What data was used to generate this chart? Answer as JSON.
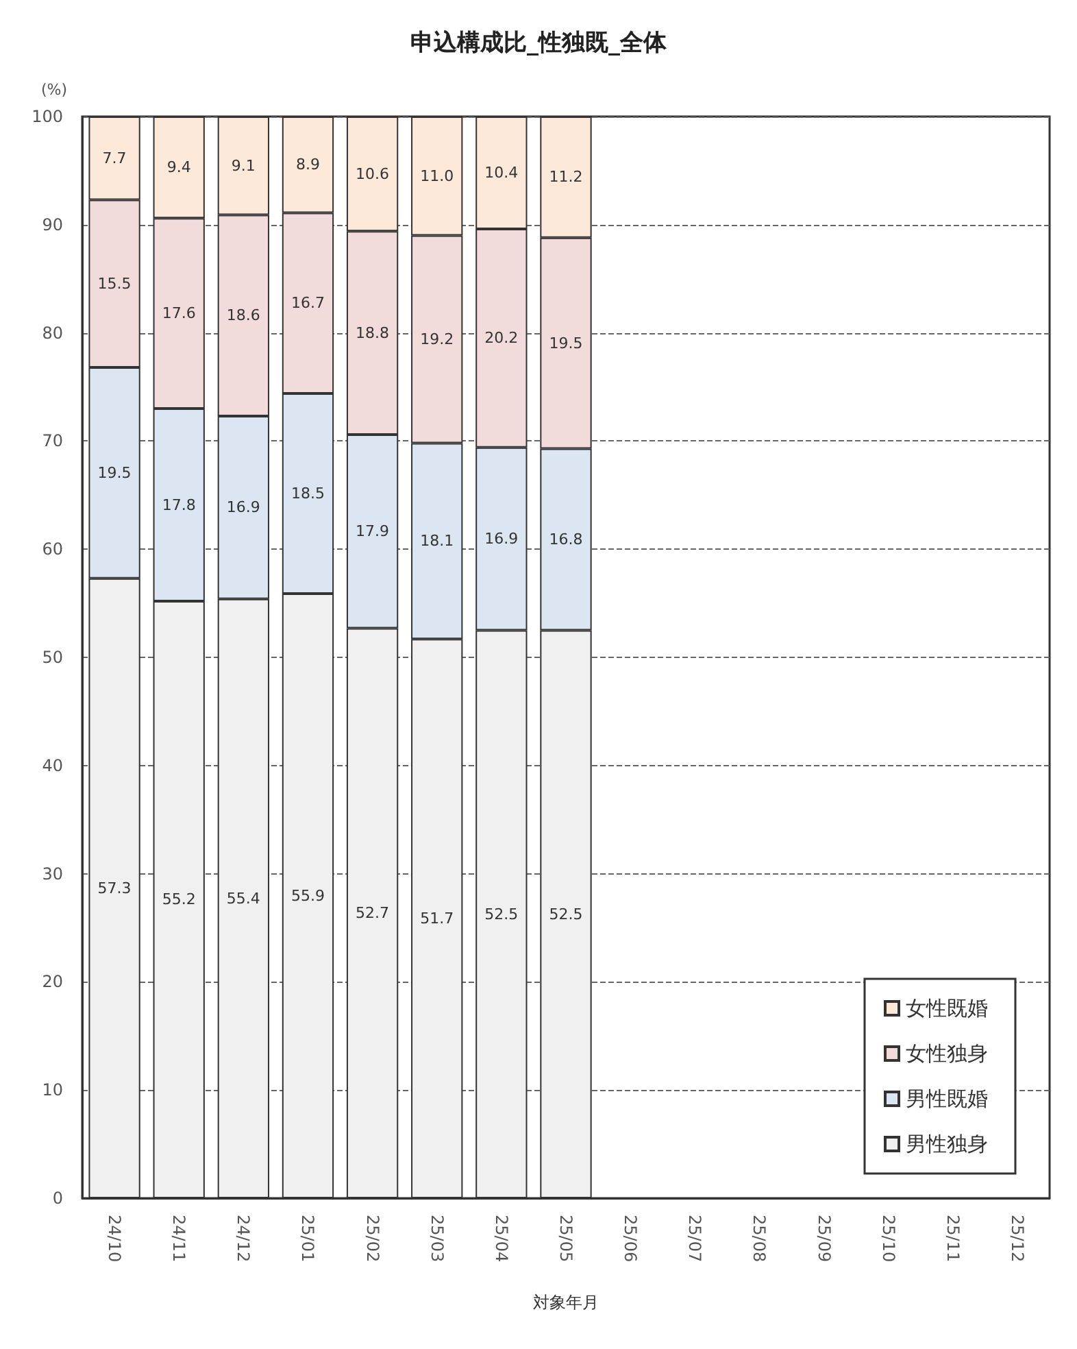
{
  "chart_data": {
    "type": "bar",
    "title": "申込構成比_性独既_全体",
    "xlabel": "対象年月",
    "ylabel": "(%)",
    "categories": [
      "24/10",
      "24/11",
      "24/12",
      "25/01",
      "25/02",
      "25/03",
      "25/04",
      "25/05",
      "25/06",
      "25/07",
      "25/08",
      "25/09",
      "25/10",
      "25/11",
      "25/12"
    ],
    "stacked": true,
    "ylim": [
      0,
      100
    ],
    "yticks": [
      0,
      10,
      20,
      30,
      40,
      50,
      60,
      70,
      80,
      90,
      100
    ],
    "grid": "y",
    "legend": "bottom right",
    "series": [
      {
        "name": "男性独身",
        "color": "#f0f0f0",
        "values": [
          57.3,
          55.2,
          55.4,
          55.9,
          52.7,
          51.7,
          52.5,
          52.5,
          null,
          null,
          null,
          null,
          null,
          null,
          null
        ],
        "value_labels": [
          "57.3",
          "55.2",
          "55.4",
          "55.9",
          "52.7",
          "51.7",
          "52.5",
          "52.5",
          null,
          null,
          null,
          null,
          null,
          null,
          null
        ]
      },
      {
        "name": "男性既婚",
        "color": "#dce6f2",
        "values": [
          19.5,
          17.8,
          16.9,
          18.5,
          17.9,
          18.1,
          16.9,
          16.8,
          null,
          null,
          null,
          null,
          null,
          null,
          null
        ],
        "value_labels": [
          "19.5",
          "17.8",
          "16.9",
          "18.5",
          "17.9",
          "18.1",
          "16.9",
          "16.8",
          null,
          null,
          null,
          null,
          null,
          null,
          null
        ]
      },
      {
        "name": "女性独身",
        "color": "#f2dcdb",
        "values": [
          15.5,
          17.6,
          18.6,
          16.7,
          18.8,
          19.2,
          20.2,
          19.5,
          null,
          null,
          null,
          null,
          null,
          null,
          null
        ],
        "value_labels": [
          "15.5",
          "17.6",
          "18.6",
          "16.7",
          "18.8",
          "19.2",
          "20.2",
          "19.5",
          null,
          null,
          null,
          null,
          null,
          null,
          null
        ]
      },
      {
        "name": "女性既婚",
        "color": "#fde9d9",
        "values": [
          7.7,
          9.4,
          9.1,
          8.9,
          10.6,
          11.0,
          10.4,
          11.2,
          null,
          null,
          null,
          null,
          null,
          null,
          null
        ],
        "value_labels": [
          "7.7",
          "9.4",
          "9.1",
          "8.9",
          "10.6",
          "11.0",
          "10.4",
          "11.2",
          null,
          null,
          null,
          null,
          null,
          null,
          null
        ]
      }
    ]
  }
}
